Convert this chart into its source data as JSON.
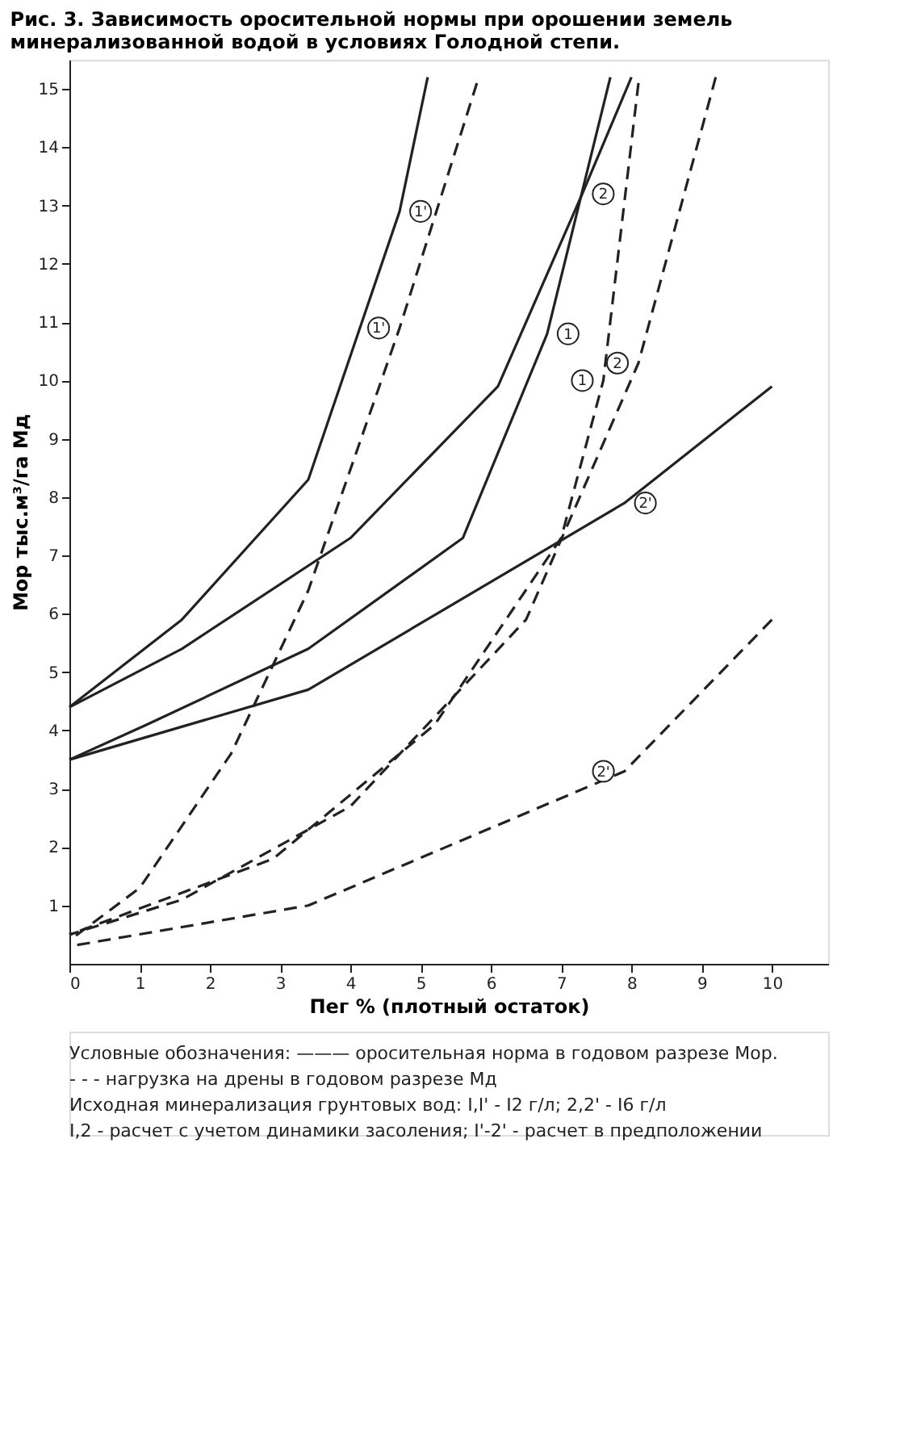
{
  "chart_data": {
    "type": "line",
    "title": "Рис. 3. Зависимость оросительной нормы при орошении земель минерализованной водой в условиях Голодной степи.",
    "xlabel": "Пег % (плотный остаток)",
    "ylabel": "Мор тыс.м³/га Мд",
    "xlim": [
      0,
      10.8
    ],
    "ylim": [
      0,
      15.5
    ],
    "xticks": [
      0,
      1,
      2,
      3,
      4,
      5,
      6,
      7,
      8,
      9,
      10
    ],
    "yticks": [
      1,
      2,
      3,
      4,
      5,
      6,
      7,
      8,
      9,
      10,
      11,
      12,
      13,
      14,
      15
    ],
    "grid": false,
    "marker": "none",
    "series": [
      {
        "name": "2'",
        "color": "#222222",
        "line_style": "solid",
        "x": [
          10.0,
          7.9,
          3.4,
          0
        ],
        "values": [
          9.9,
          7.9,
          4.7,
          3.5
        ]
      },
      {
        "name": "1",
        "color": "#222222",
        "line_style": "solid",
        "x": [
          7.7,
          6.8,
          5.6,
          3.4,
          1.1,
          0
        ],
        "values": [
          15.2,
          10.8,
          7.3,
          5.4,
          4.1,
          3.5
        ]
      },
      {
        "name": "2",
        "color": "#222222",
        "line_style": "solid",
        "x": [
          8.0,
          7.3,
          6.1,
          4.0,
          1.6,
          0
        ],
        "values": [
          15.2,
          13.2,
          9.9,
          7.3,
          5.4,
          4.4
        ]
      },
      {
        "name": "1'",
        "color": "#222222",
        "line_style": "solid",
        "x": [
          5.1,
          4.7,
          3.4,
          1.6,
          0
        ],
        "values": [
          15.2,
          12.9,
          8.3,
          5.9,
          4.4
        ]
      },
      {
        "name": "2'",
        "color": "#222222",
        "line_style": "dashed",
        "x": [
          10.0,
          7.9,
          3.4,
          0
        ],
        "values": [
          5.9,
          3.3,
          1.0,
          0.3
        ]
      },
      {
        "name": "2",
        "color": "#222222",
        "line_style": "dashed",
        "x": [
          9.2,
          8.1,
          6.5,
          4.0,
          1.6,
          0
        ],
        "values": [
          15.2,
          10.3,
          5.9,
          2.7,
          1.1,
          0.5
        ]
      },
      {
        "name": "1",
        "color": "#222222",
        "line_style": "dashed",
        "x": [
          8.1,
          7.6,
          7.0,
          5.2,
          2.9,
          0
        ],
        "values": [
          15.1,
          10.0,
          7.3,
          4.1,
          1.8,
          0.5
        ]
      },
      {
        "name": "1'",
        "color": "#222222",
        "line_style": "dashed",
        "x": [
          5.8,
          4.7,
          3.4,
          2.3,
          1.0,
          0
        ],
        "values": [
          15.1,
          10.9,
          6.4,
          3.6,
          1.3,
          0.4
        ]
      }
    ],
    "annotations": [
      "Условные обозначения: ——— оросительная норма в годовом разрезе Мор.",
      "- - - нагрузка на дрены в годовом разрезе Мд",
      "Исходная минерализация грунтовых вод: I,I' - I2 г/л; 2,2' - I6 г/л",
      "I,2 - расчет с учетом динамики засоления; I'-2' - расчет в предположении"
    ]
  }
}
